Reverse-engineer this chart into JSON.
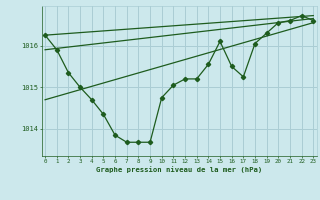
{
  "x": [
    0,
    1,
    2,
    3,
    4,
    5,
    6,
    7,
    8,
    9,
    10,
    11,
    12,
    13,
    14,
    15,
    16,
    17,
    18,
    19,
    20,
    21,
    22,
    23
  ],
  "y_main": [
    1016.25,
    1015.9,
    1015.35,
    1015.0,
    1014.7,
    1014.35,
    1013.85,
    1013.68,
    1013.68,
    1013.68,
    1014.75,
    1015.05,
    1015.2,
    1015.2,
    1015.55,
    1016.1,
    1015.5,
    1015.25,
    1016.05,
    1016.3,
    1016.55,
    1016.6,
    1016.72,
    1016.6
  ],
  "line_color": "#1e5c1e",
  "bg_color": "#cce8ec",
  "grid_color": "#aacdd4",
  "xlabel": "Graphe pression niveau de la mer (hPa)",
  "ylabel_ticks": [
    1014,
    1015,
    1016
  ],
  "xlim": [
    -0.3,
    23.3
  ],
  "ylim": [
    1013.35,
    1016.95
  ],
  "smooth_line1_x": [
    0,
    23
  ],
  "smooth_line1_y": [
    1015.9,
    1016.65
  ],
  "smooth_line2_x": [
    0,
    23
  ],
  "smooth_line2_y": [
    1016.25,
    1016.72
  ],
  "smooth_line3_x": [
    0,
    23
  ],
  "smooth_line3_y": [
    1014.7,
    1016.55
  ]
}
